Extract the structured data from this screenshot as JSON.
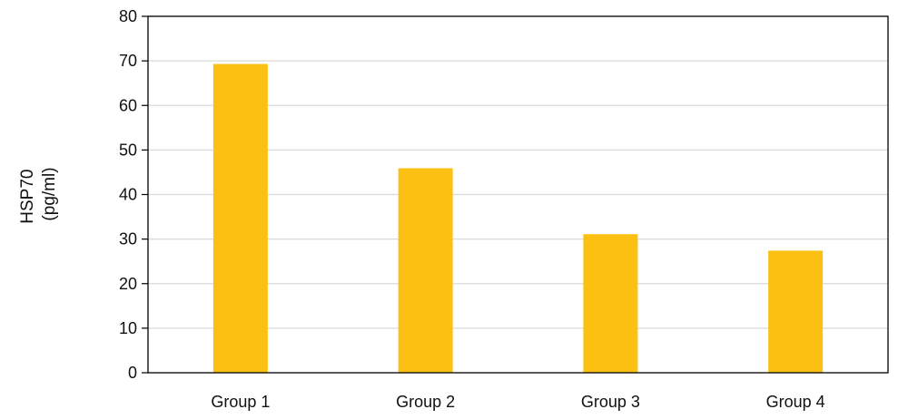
{
  "chart_data": {
    "type": "bar",
    "categories": [
      "Group 1",
      "Group 2",
      "Group 3",
      "Group 4"
    ],
    "series": [
      {
        "values": [
          69.3,
          45.9,
          31.1,
          27.4
        ]
      }
    ],
    "title": "",
    "xlabel": "",
    "ylabel": [
      "HSP70",
      "(pg/ml)"
    ],
    "ylim": [
      0,
      80
    ],
    "yticks": [
      0,
      10,
      20,
      30,
      40,
      50,
      60,
      70,
      80
    ],
    "grid": true,
    "legend": "none",
    "colors": {
      "bar": "#FCC012",
      "grid": "#D9D9D9",
      "axis": "#000000"
    }
  }
}
